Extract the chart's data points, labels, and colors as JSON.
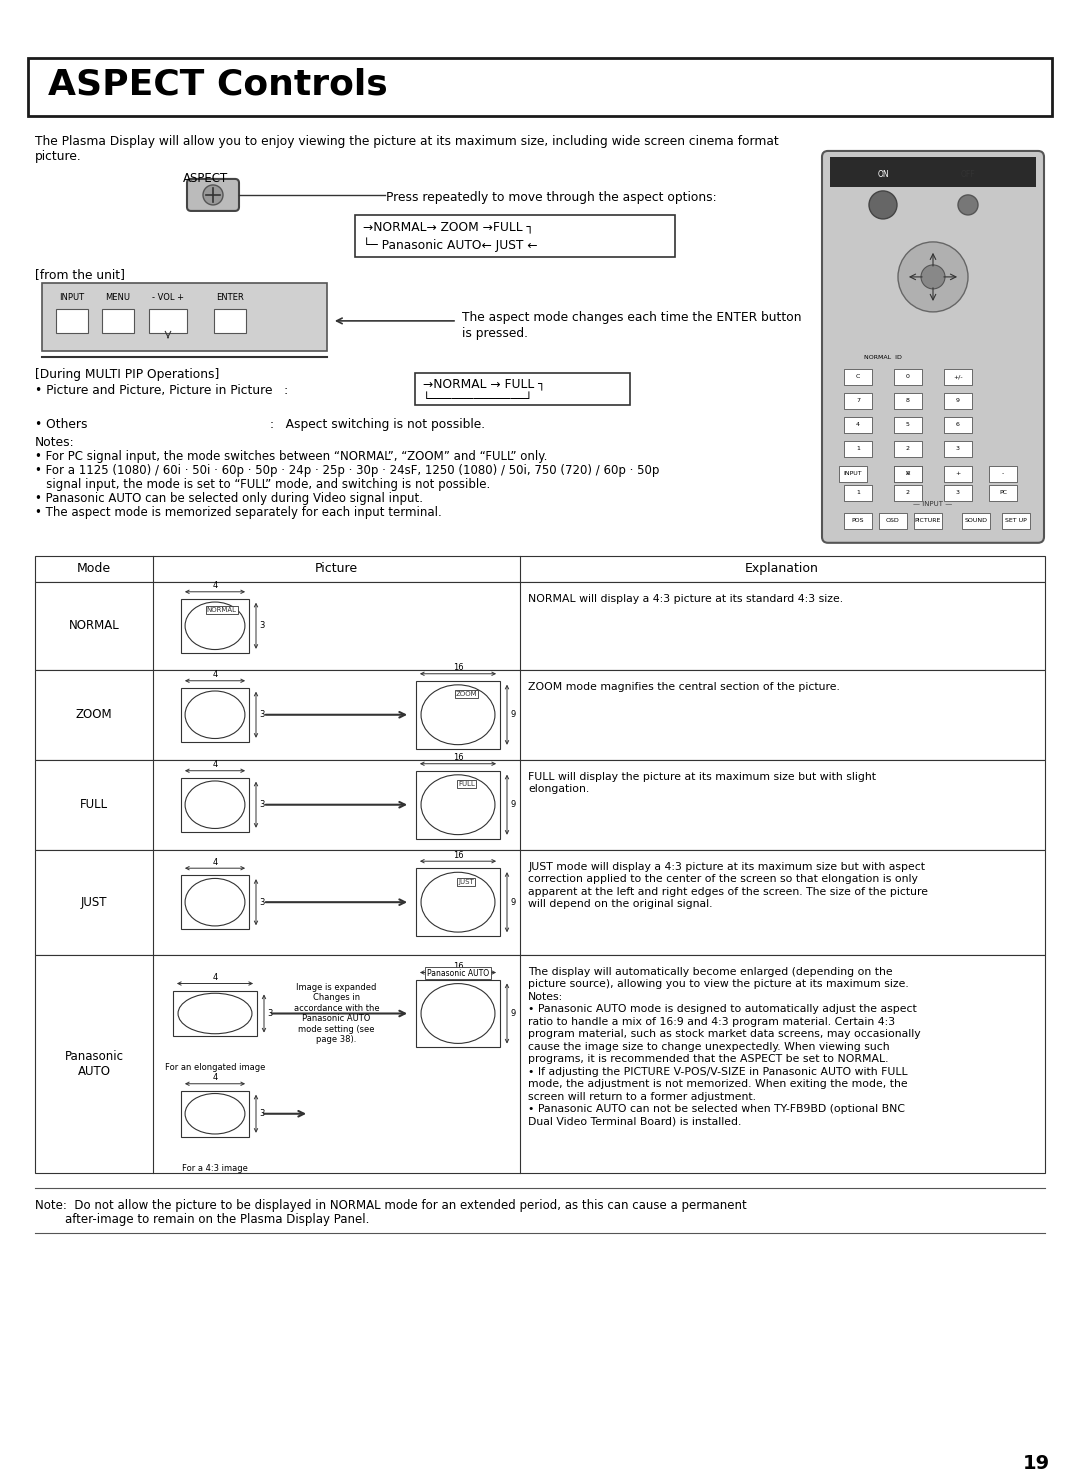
{
  "title": "ASPECT Controls",
  "page_number": "19",
  "bg_color": "#ffffff",
  "text_color": "#000000",
  "border_color": "#333333",
  "intro_text": "The Plasma Display will allow you to enjoy viewing the picture at its maximum size, including wide screen cinema format picture.",
  "aspect_label": "ASPECT",
  "press_text": "Press repeatedly to move through the aspect options:",
  "cycle_line1": "→NORMAL→ ZOOM →FULL ┐",
  "cycle_line2": "└─ Panasonic AUTO← JUST ←",
  "from_unit": "[from the unit]",
  "enter_text1": "The aspect mode changes each time the ENTER button",
  "enter_text2": "is pressed.",
  "multi_pip_header": "[During MULTI PIP Operations]",
  "pip_bullet": "• Picture and Picture, Picture in Picture   :",
  "pip_cycle1": "→NORMAL → FULL ┐",
  "pip_cycle2": "└─────────────┘",
  "others_text": "• Others                                          :   Aspect switching is not possible.",
  "notes_header": "Notes:",
  "notes": [
    "• For PC signal input, the mode switches between “NORMAL”, “ZOOM” and “FULL” only.",
    "• For a 1125 (1080) / 60i · 50i · 60p · 50p · 24p · 25p · 30p · 24sF, 1250 (1080) / 50i, 750 (720) / 60p · 50p",
    "   signal input, the mode is set to “FULL” mode, and switching is not possible.",
    "• Panasonic AUTO can be selected only during Video signal input.",
    "• The aspect mode is memorized separately for each input terminal."
  ],
  "table_headers": [
    "Mode",
    "Picture",
    "Explanation"
  ],
  "table_modes": [
    "NORMAL",
    "ZOOM",
    "FULL",
    "JUST",
    "Panasonic\nAUTO"
  ],
  "table_explanations": [
    "NORMAL will display a 4:3 picture at its standard 4:3 size.",
    "ZOOM mode magnifies the central section of the picture.",
    "FULL will display the picture at its maximum size but with slight\nelongation.",
    "JUST mode will display a 4:3 picture at its maximum size but with aspect\ncorrection applied to the center of the screen so that elongation is only\napparent at the left and right edges of the screen. The size of the picture\nwill depend on the original signal.",
    "The display will automatically become enlarged (depending on the\npicture source), allowing you to view the picture at its maximum size.\nNotes:\n• Panasonic AUTO mode is designed to automatically adjust the aspect\nratio to handle a mix of 16:9 and 4:3 program material. Certain 4:3\nprogram material, such as stock market data screens, may occasionally\ncause the image size to change unexpectedly. When viewing such\nprograms, it is recommended that the ASPECT be set to NORMAL.\n• If adjusting the PICTURE V-POS/V-SIZE in Panasonic AUTO with FULL\nmode, the adjustment is not memorized. When exiting the mode, the\nscreen will return to a former adjustment.\n• Panasonic AUTO can not be selected when TY-FB9BD (optional BNC\nDual Video Terminal Board) is installed."
  ],
  "footer_note1": "Note:  Do not allow the picture to be displayed in NORMAL mode for an extended period, as this can cause a permanent",
  "footer_note2": "        after-image to remain on the Plasma Display Panel."
}
